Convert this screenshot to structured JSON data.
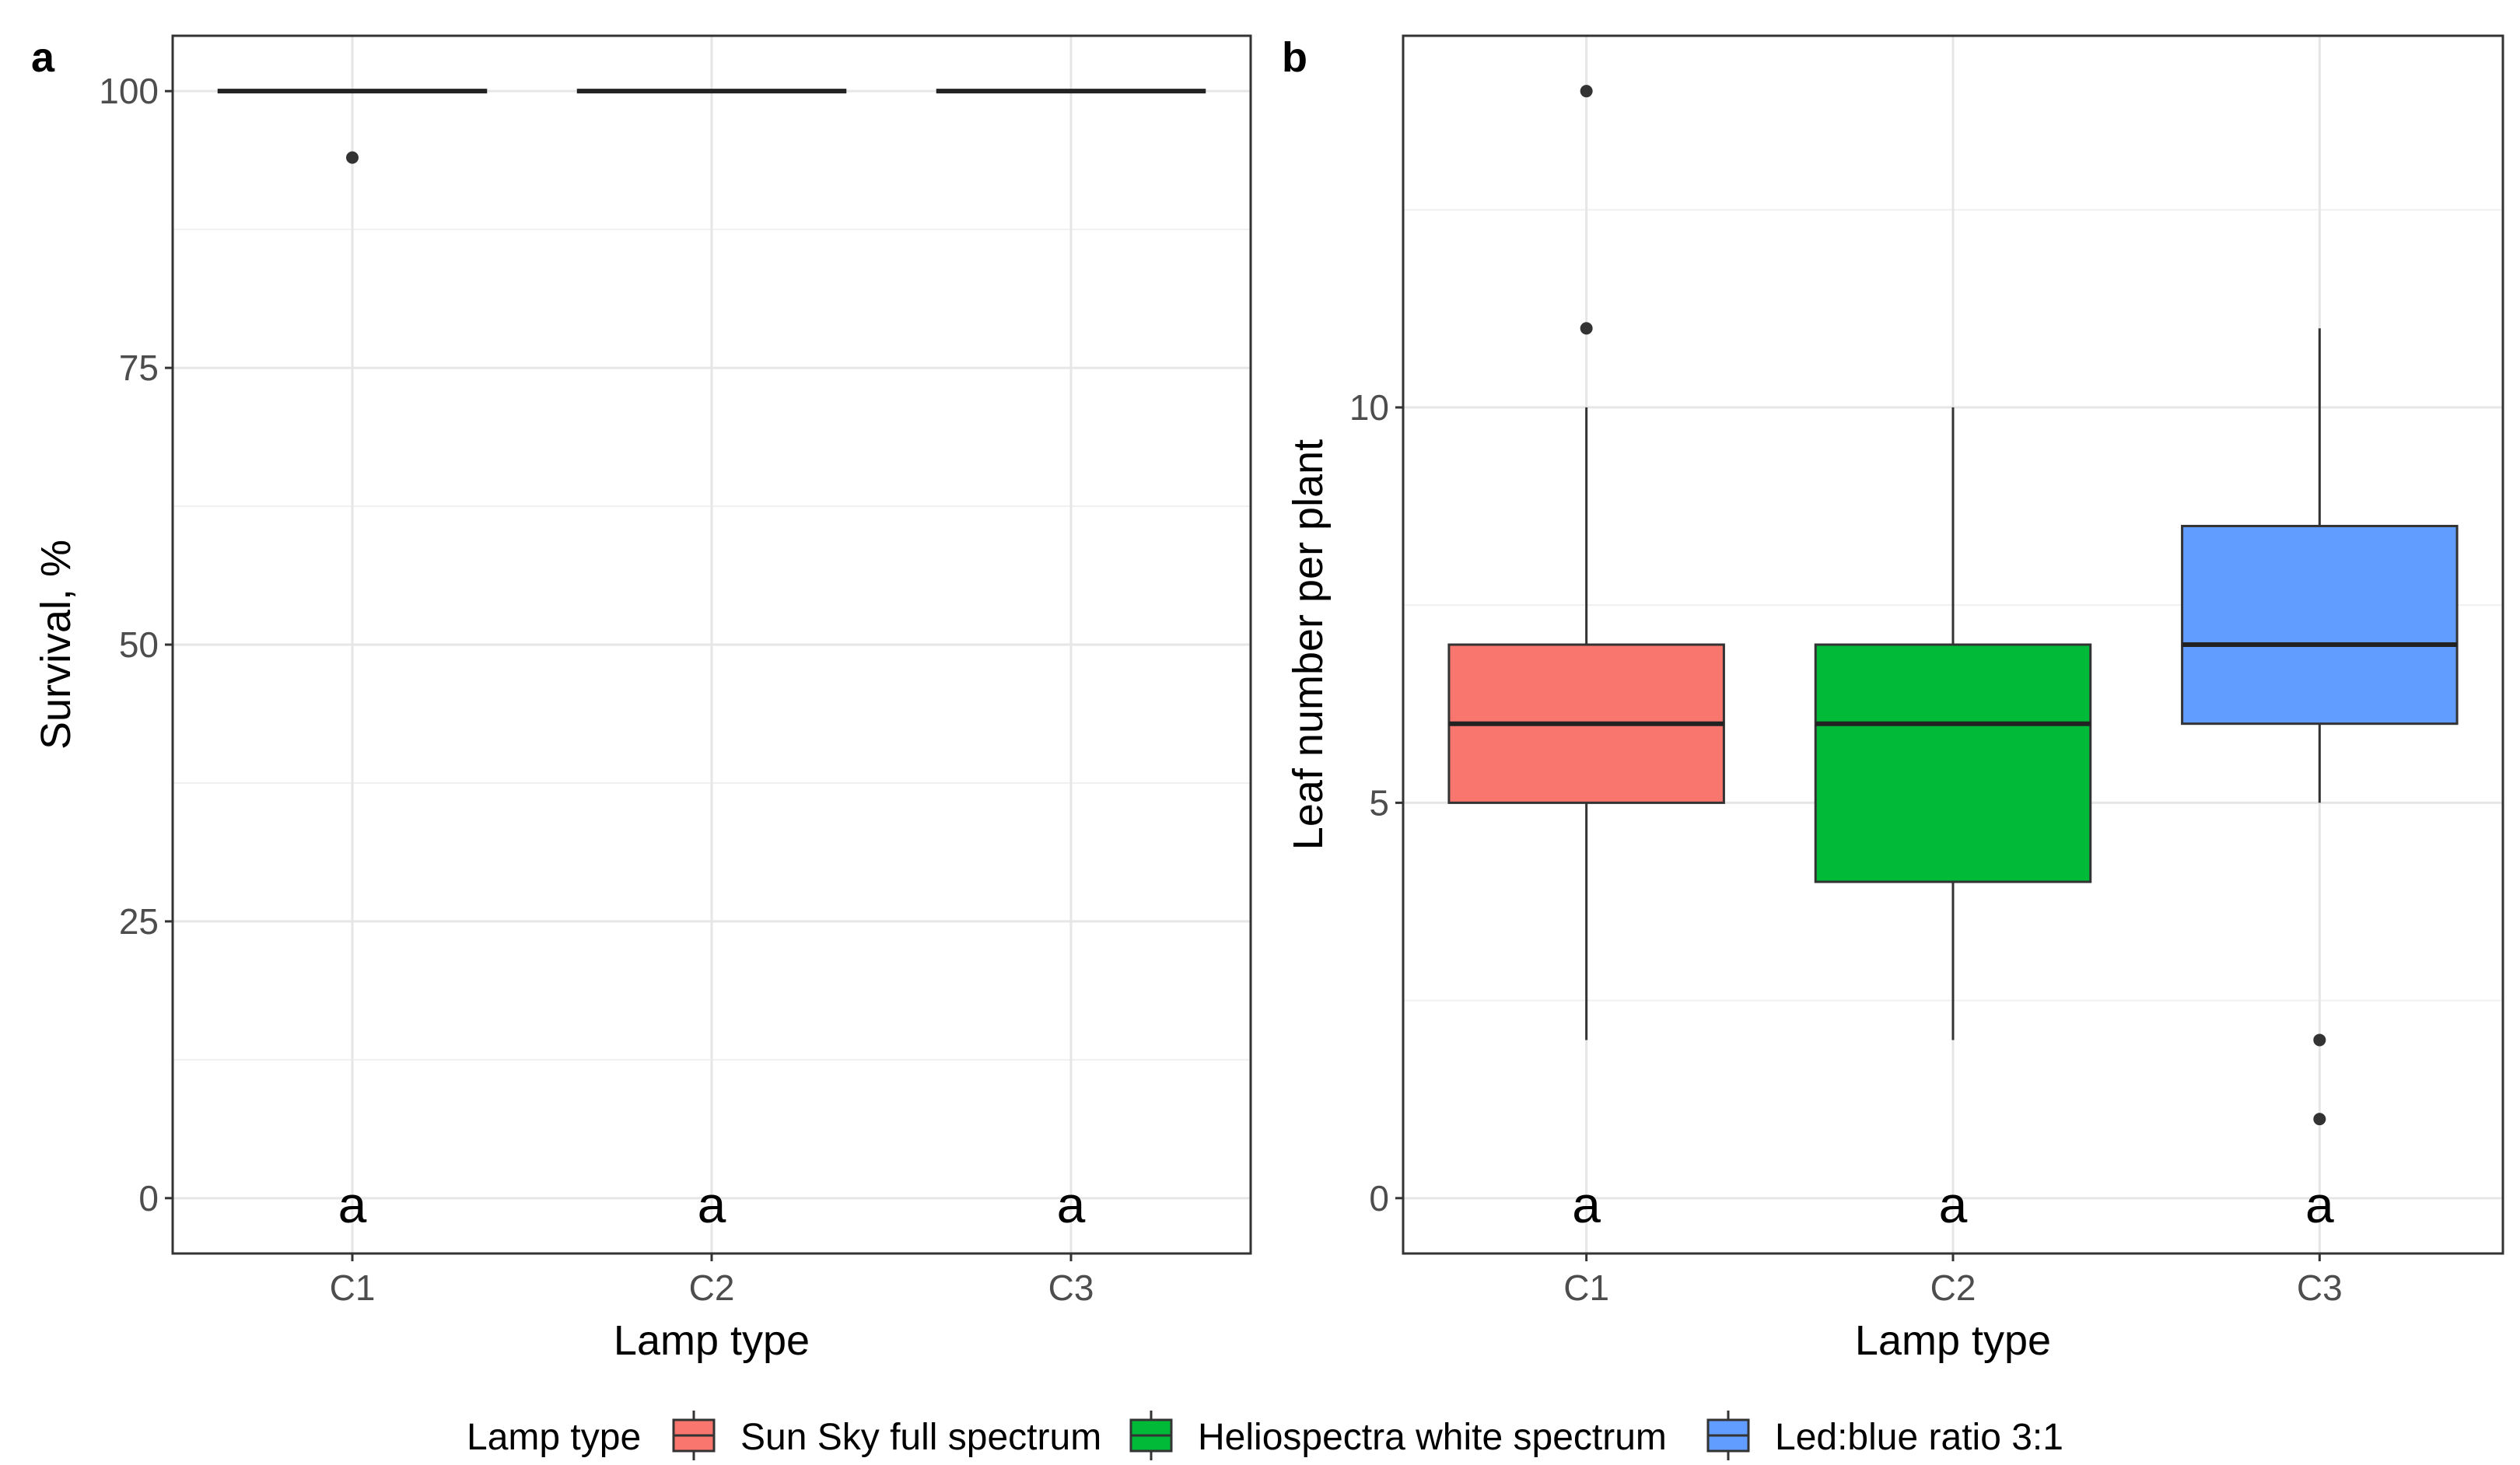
{
  "chart_data": [
    {
      "panel": "a",
      "type": "box",
      "title": "",
      "xlabel": "Lamp type",
      "ylabel": "Survival, %",
      "categories": [
        "C1",
        "C2",
        "C3"
      ],
      "ylim": [
        -5,
        105
      ],
      "yticks": [
        0,
        25,
        50,
        75,
        100
      ],
      "grid": true,
      "boxes": [
        {
          "category": "C1",
          "min": 100,
          "q1": 100,
          "median": 100,
          "q3": 100,
          "max": 100,
          "outliers": [
            94
          ],
          "color": "#F8766D"
        },
        {
          "category": "C2",
          "min": 100,
          "q1": 100,
          "median": 100,
          "q3": 100,
          "max": 100,
          "outliers": [],
          "color": "#00BA38"
        },
        {
          "category": "C3",
          "min": 100,
          "q1": 100,
          "median": 100,
          "q3": 100,
          "max": 100,
          "outliers": [],
          "color": "#619CFF"
        }
      ],
      "significance": [
        "a",
        "a",
        "a"
      ]
    },
    {
      "panel": "b",
      "type": "box",
      "title": "",
      "xlabel": "Lamp type",
      "ylabel": "Leaf number per plant",
      "categories": [
        "C1",
        "C2",
        "C3"
      ],
      "ylim": [
        -0.7,
        14.7
      ],
      "yticks": [
        0,
        5,
        10
      ],
      "grid": true,
      "boxes": [
        {
          "category": "C1",
          "min": 2,
          "q1": 5,
          "median": 6,
          "q3": 7,
          "max": 10,
          "outliers": [
            11,
            14
          ],
          "color": "#F8766D"
        },
        {
          "category": "C2",
          "min": 2,
          "q1": 4,
          "median": 6,
          "q3": 7,
          "max": 10,
          "outliers": [],
          "color": "#00BA38"
        },
        {
          "category": "C3",
          "min": 5,
          "q1": 6,
          "median": 7,
          "q3": 8.5,
          "max": 11,
          "outliers": [
            2,
            1
          ],
          "color": "#619CFF"
        }
      ],
      "significance": [
        "a",
        "a",
        "a"
      ]
    }
  ],
  "legend": {
    "title": "Lamp type",
    "position": "bottom",
    "items": [
      {
        "label": "Sun Sky full spectrum",
        "color": "#F8766D"
      },
      {
        "label": "Heliospectra white spectrum",
        "color": "#00BA38"
      },
      {
        "label": "Led:blue ratio 3:1",
        "color": "#619CFF"
      }
    ]
  }
}
